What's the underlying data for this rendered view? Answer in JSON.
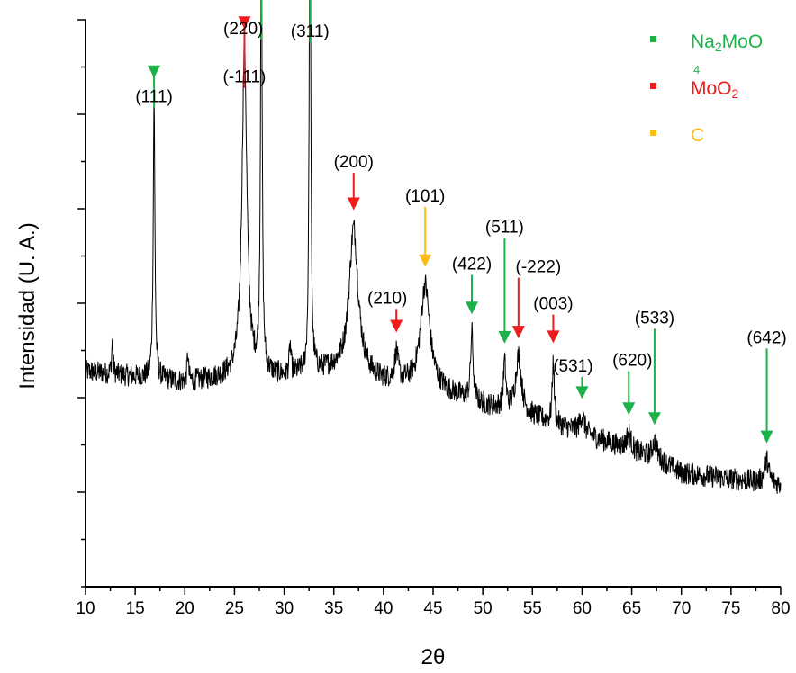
{
  "chart_data": {
    "type": "line",
    "title": "",
    "xlabel": "2θ",
    "ylabel": "Intensidad (U. A.)",
    "xlim": [
      10,
      80
    ],
    "xticks": [
      10,
      15,
      20,
      25,
      30,
      35,
      40,
      45,
      50,
      55,
      60,
      65,
      70,
      75,
      80
    ],
    "ylim": [
      0,
      1
    ],
    "grid": false,
    "legend_position": "top-right",
    "colors": {
      "trace": "#000000",
      "Na2MoO4": "#1db14a",
      "MoO2": "#ee1c1c",
      "C": "#fbbd14"
    },
    "legend": [
      {
        "key": "Na2MoO4",
        "label_main": "Na",
        "label_sub": "2",
        "label_rest": "MoO",
        "label_sub2": "4",
        "color": "#1db14a"
      },
      {
        "key": "MoO2",
        "label_main": "MoO",
        "label_sub": "2",
        "label_rest": "",
        "label_sub2": "",
        "color": "#ee1c1c"
      },
      {
        "key": "C",
        "label_main": "C",
        "label_sub": "",
        "label_rest": "",
        "label_sub2": "",
        "color": "#fbbd14"
      }
    ],
    "baseline": [
      [
        10,
        0.38
      ],
      [
        15,
        0.37
      ],
      [
        20,
        0.36
      ],
      [
        25,
        0.37
      ],
      [
        30,
        0.37
      ],
      [
        35,
        0.38
      ],
      [
        40,
        0.36
      ],
      [
        45,
        0.35
      ],
      [
        50,
        0.32
      ],
      [
        55,
        0.3
      ],
      [
        60,
        0.27
      ],
      [
        65,
        0.24
      ],
      [
        68,
        0.22
      ],
      [
        70,
        0.2
      ],
      [
        75,
        0.19
      ],
      [
        80,
        0.18
      ]
    ],
    "peaks": [
      {
        "x": 12.7,
        "h": 0.06,
        "w": 0.08
      },
      {
        "x": 16.9,
        "h": 0.5,
        "w": 0.1
      },
      {
        "x": 20.3,
        "h": 0.05,
        "w": 0.08
      },
      {
        "x": 26.0,
        "h": 0.58,
        "w": 0.3
      },
      {
        "x": 27.7,
        "h": 0.78,
        "w": 0.1
      },
      {
        "x": 30.6,
        "h": 0.05,
        "w": 0.1
      },
      {
        "x": 32.6,
        "h": 0.97,
        "w": 0.09
      },
      {
        "x": 37.0,
        "h": 0.26,
        "w": 0.55
      },
      {
        "x": 41.3,
        "h": 0.05,
        "w": 0.2
      },
      {
        "x": 44.2,
        "h": 0.18,
        "w": 0.55
      },
      {
        "x": 48.9,
        "h": 0.12,
        "w": 0.15
      },
      {
        "x": 52.2,
        "h": 0.08,
        "w": 0.15
      },
      {
        "x": 53.6,
        "h": 0.1,
        "w": 0.35
      },
      {
        "x": 57.1,
        "h": 0.11,
        "w": 0.12
      },
      {
        "x": 60.0,
        "h": 0.03,
        "w": 0.3
      },
      {
        "x": 64.7,
        "h": 0.03,
        "w": 0.25
      },
      {
        "x": 67.3,
        "h": 0.03,
        "w": 0.3
      },
      {
        "x": 78.6,
        "h": 0.04,
        "w": 0.25
      }
    ],
    "annotations": [
      {
        "label": "(111)",
        "x": 16.9,
        "phase": "Na2MoO4"
      },
      {
        "label": "(-111)",
        "x": 26.0,
        "phase": "MoO2"
      },
      {
        "label": "(220)",
        "x": 27.7,
        "phase": "Na2MoO4"
      },
      {
        "label": "(311)",
        "x": 32.6,
        "phase": "Na2MoO4"
      },
      {
        "label": "(200)",
        "x": 37.0,
        "phase": "MoO2"
      },
      {
        "label": "(210)",
        "x": 41.3,
        "phase": "MoO2"
      },
      {
        "label": "(101)",
        "x": 44.2,
        "phase": "C"
      },
      {
        "label": "(422)",
        "x": 48.9,
        "phase": "Na2MoO4"
      },
      {
        "label": "(511)",
        "x": 52.2,
        "phase": "Na2MoO4"
      },
      {
        "label": "(-222)",
        "x": 53.6,
        "phase": "MoO2"
      },
      {
        "label": "(003)",
        "x": 57.1,
        "phase": "MoO2"
      },
      {
        "label": "(531)",
        "x": 60.0,
        "phase": "Na2MoO4"
      },
      {
        "label": "(620)",
        "x": 64.7,
        "phase": "Na2MoO4"
      },
      {
        "label": "(533)",
        "x": 67.3,
        "phase": "Na2MoO4"
      },
      {
        "label": "(642)",
        "x": 78.6,
        "phase": "Na2MoO4"
      }
    ]
  }
}
